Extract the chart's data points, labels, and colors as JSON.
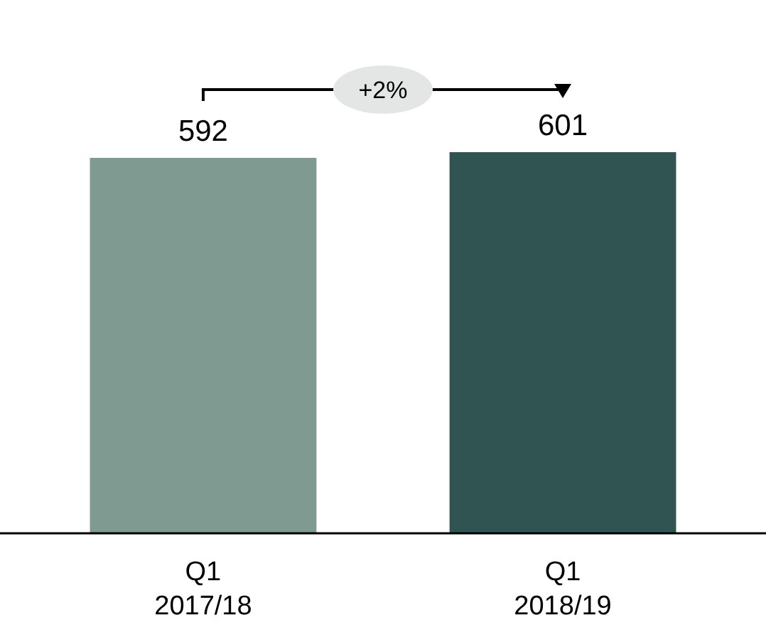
{
  "chart_data": {
    "type": "bar",
    "categories": [
      "Q1\n2017/18",
      "Q1\n2018/19"
    ],
    "values": [
      592,
      601
    ],
    "colors": [
      "#7f9a91",
      "#2f5452"
    ],
    "data_labels": true,
    "annotations": [
      "+2%"
    ]
  }
}
